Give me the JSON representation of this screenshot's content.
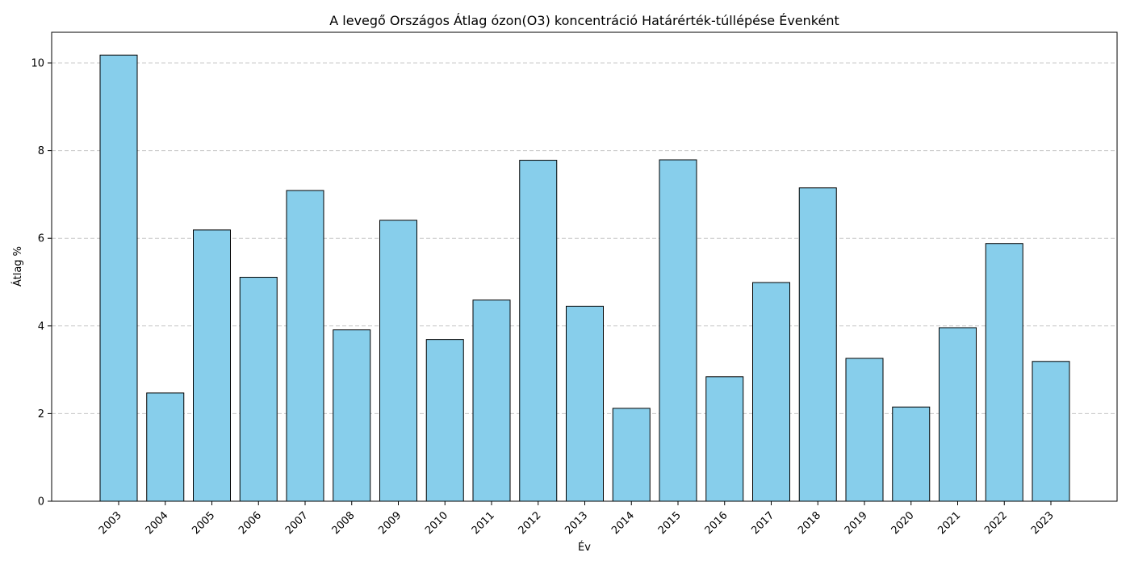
{
  "chart_data": {
    "type": "bar",
    "title": "A levegő Országos Átlag ózon(O3) koncentráció Határérték-túllépése Évenként",
    "xlabel": "Év",
    "ylabel": "Átlag %",
    "categories": [
      "2003",
      "2004",
      "2005",
      "2006",
      "2007",
      "2008",
      "2009",
      "2010",
      "2011",
      "2012",
      "2013",
      "2014",
      "2015",
      "2016",
      "2017",
      "2018",
      "2019",
      "2020",
      "2021",
      "2022",
      "2023"
    ],
    "values": [
      10.18,
      2.47,
      6.19,
      5.11,
      7.09,
      3.91,
      6.41,
      3.69,
      4.59,
      7.78,
      4.45,
      2.12,
      7.79,
      2.84,
      4.99,
      7.15,
      3.26,
      2.15,
      3.96,
      5.88,
      3.19
    ],
    "ylim": [
      0,
      10.7
    ],
    "yticks": [
      0,
      2,
      4,
      6,
      8,
      10
    ],
    "grid": "y-dashed",
    "colors": {
      "bar_fill": "#87CEEB",
      "bar_edge": "#000000",
      "grid": "#c8c8c8"
    }
  }
}
